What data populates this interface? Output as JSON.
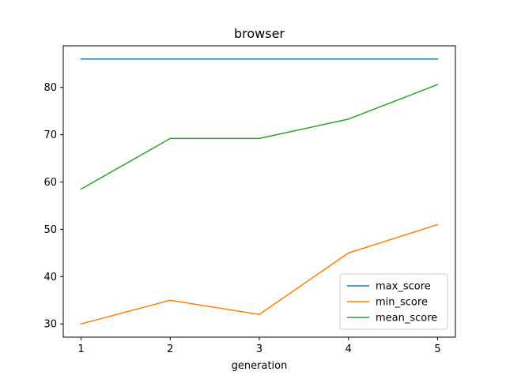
{
  "chart_data": {
    "type": "line",
    "title": "browser",
    "xlabel": "generation",
    "ylabel": "",
    "x": [
      1,
      2,
      3,
      4,
      5
    ],
    "xlim": [
      0.8,
      5.2
    ],
    "ylim": [
      27.2,
      88.8
    ],
    "xticks": [
      1,
      2,
      3,
      4,
      5
    ],
    "yticks": [
      30,
      40,
      50,
      60,
      70,
      80
    ],
    "grid": false,
    "legend_position": "lower-right",
    "series": [
      {
        "name": "max_score",
        "color": "#1f77b4",
        "values": [
          86,
          86,
          86,
          86,
          86
        ]
      },
      {
        "name": "min_score",
        "color": "#ff7f0e",
        "values": [
          30,
          35,
          32,
          45,
          51
        ]
      },
      {
        "name": "mean_score",
        "color": "#2ca02c",
        "values": [
          58.5,
          69.2,
          69.2,
          73.3,
          80.6
        ]
      }
    ]
  }
}
